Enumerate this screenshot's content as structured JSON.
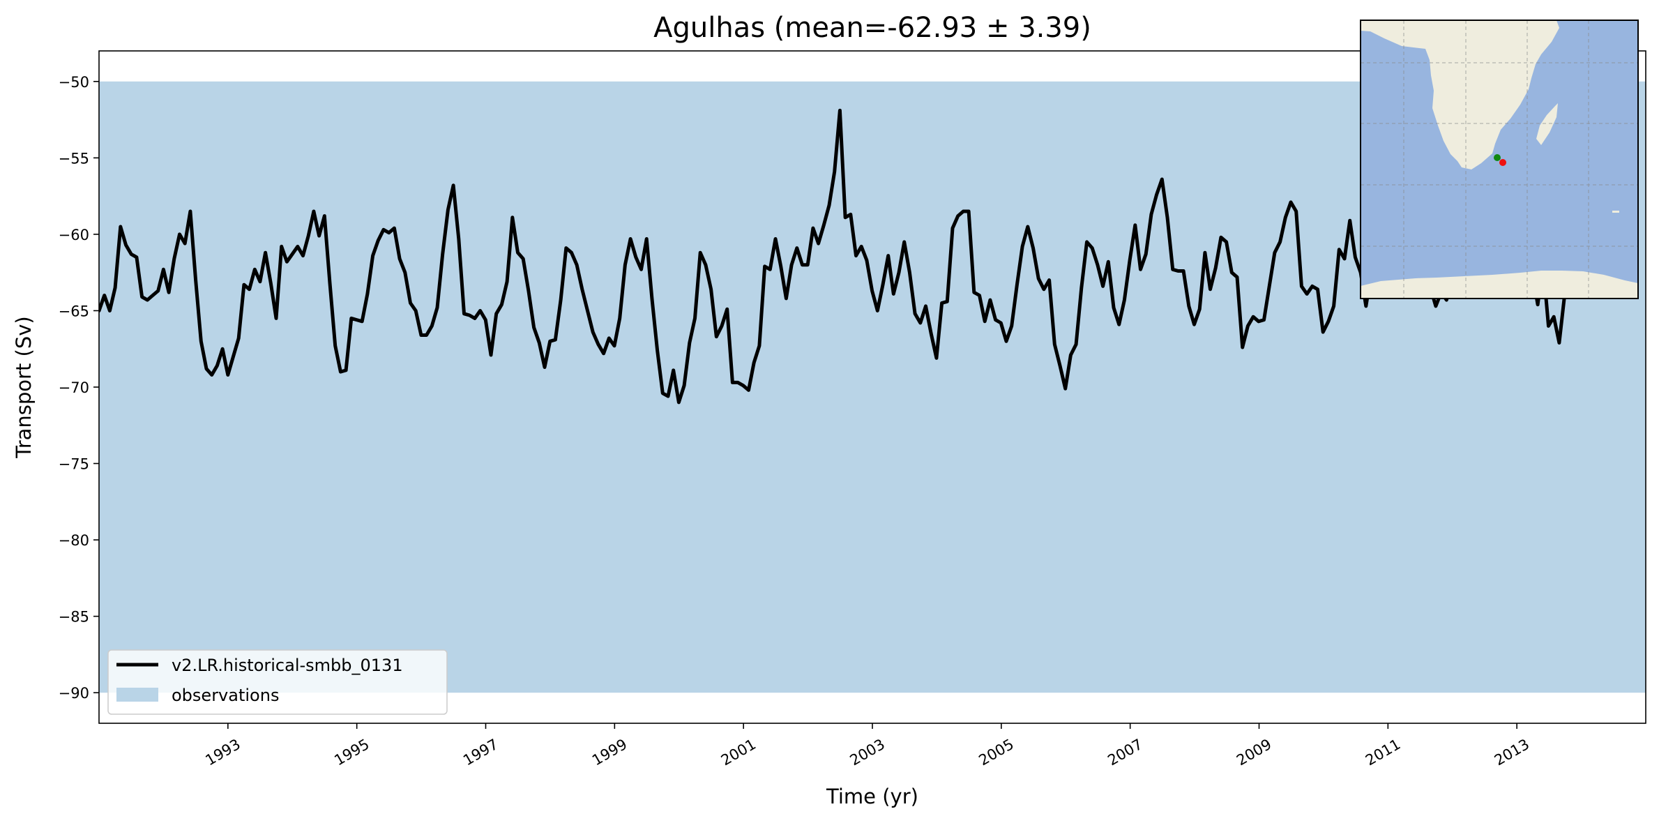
{
  "chart_data": {
    "type": "line",
    "title": "Agulhas (mean=-62.93 ± 3.39)",
    "xlabel": "Time (yr)",
    "ylabel": "Transport (Sv)",
    "xlim": [
      1991.0,
      2015.0
    ],
    "ylim": [
      -92,
      -48
    ],
    "x_ticks": [
      1993,
      1995,
      1997,
      1999,
      2001,
      2003,
      2005,
      2007,
      2009,
      2011,
      2013
    ],
    "y_ticks": [
      -50,
      -55,
      -60,
      -65,
      -70,
      -75,
      -80,
      -85,
      -90
    ],
    "y_tick_labels": [
      "−50",
      "−55",
      "−60",
      "−65",
      "−70",
      "−75",
      "−80",
      "−85",
      "−90"
    ],
    "grid": false,
    "legend_position": "lower-left",
    "observations_band": {
      "name": "observations",
      "y_min": -90,
      "y_max": -50,
      "color": "#b9d4e7"
    },
    "series": [
      {
        "name": "v2.LR.historical-smbb_0131",
        "color": "#000000",
        "x_start": 1991.0,
        "x_step": 0.0833,
        "values": [
          -65.0,
          -64.0,
          -65.0,
          -63.5,
          -59.5,
          -60.7,
          -61.3,
          -61.5,
          -64.1,
          -64.3,
          -64.0,
          -63.7,
          -62.3,
          -63.8,
          -61.6,
          -60.0,
          -60.6,
          -58.5,
          -63.0,
          -67.0,
          -68.8,
          -69.2,
          -68.6,
          -67.5,
          -69.2,
          -68.0,
          -66.8,
          -63.3,
          -63.6,
          -62.3,
          -63.1,
          -61.2,
          -63.2,
          -65.5,
          -60.8,
          -61.8,
          -61.3,
          -60.8,
          -61.4,
          -60.1,
          -58.5,
          -60.1,
          -58.8,
          -63.2,
          -67.3,
          -69.0,
          -68.9,
          -65.5,
          -65.6,
          -65.7,
          -63.9,
          -61.4,
          -60.4,
          -59.7,
          -59.9,
          -59.6,
          -61.6,
          -62.5,
          -64.5,
          -65.0,
          -66.6,
          -66.6,
          -66.0,
          -64.8,
          -61.3,
          -58.4,
          -56.8,
          -60.3,
          -65.2,
          -65.3,
          -65.5,
          -65.0,
          -65.6,
          -67.9,
          -65.2,
          -64.6,
          -63.1,
          -58.9,
          -61.2,
          -61.6,
          -63.7,
          -66.1,
          -67.1,
          -68.7,
          -67.0,
          -66.9,
          -64.3,
          -60.9,
          -61.2,
          -62.0,
          -63.6,
          -65.0,
          -66.4,
          -67.2,
          -67.8,
          -66.8,
          -67.3,
          -65.5,
          -62.0,
          -60.3,
          -61.5,
          -62.3,
          -60.3,
          -64.2,
          -67.6,
          -70.4,
          -70.6,
          -68.9,
          -71.0,
          -69.9,
          -67.1,
          -65.5,
          -61.2,
          -62.0,
          -63.6,
          -66.7,
          -66.0,
          -64.9,
          -69.7,
          -69.7,
          -69.9,
          -70.2,
          -68.4,
          -67.3,
          -62.1,
          -62.3,
          -60.3,
          -62.1,
          -64.2,
          -62.0,
          -60.9,
          -62.0,
          -62.0,
          -59.6,
          -60.6,
          -59.4,
          -58.1,
          -55.9,
          -51.9,
          -58.9,
          -58.7,
          -61.4,
          -60.8,
          -61.7,
          -63.7,
          -65.0,
          -63.3,
          -61.4,
          -63.9,
          -62.5,
          -60.5,
          -62.5,
          -65.2,
          -65.8,
          -64.7,
          -66.5,
          -68.1,
          -64.5,
          -64.4,
          -59.6,
          -58.8,
          -58.5,
          -58.5,
          -63.8,
          -64.0,
          -65.7,
          -64.3,
          -65.6,
          -65.8,
          -67.0,
          -66.0,
          -63.3,
          -60.8,
          -59.5,
          -60.9,
          -62.9,
          -63.6,
          -63.0,
          -67.2,
          -68.6,
          -70.1,
          -67.9,
          -67.2,
          -63.5,
          -60.5,
          -60.9,
          -62.0,
          -63.4,
          -61.8,
          -64.8,
          -65.9,
          -64.3,
          -61.7,
          -59.4,
          -62.3,
          -61.3,
          -58.7,
          -57.4,
          -56.4,
          -58.9,
          -62.3,
          -62.4,
          -62.4,
          -64.7,
          -65.9,
          -64.9,
          -61.2,
          -63.6,
          -62.2,
          -60.2,
          -60.5,
          -62.5,
          -62.8,
          -67.4,
          -66.0,
          -65.4,
          -65.7,
          -65.6,
          -63.4,
          -61.2,
          -60.5,
          -58.9,
          -57.9,
          -58.5,
          -63.4,
          -63.9,
          -63.4,
          -63.6,
          -66.4,
          -65.7,
          -64.7,
          -61.0,
          -61.6,
          -59.1,
          -61.5,
          -62.5,
          -64.7,
          -62.5,
          -63.0,
          -62.5,
          -63.0,
          -63.5,
          -62.5,
          -63.0,
          -62.0,
          -63.5,
          -63.0,
          -62.5,
          -63.5,
          -64.7,
          -63.8,
          -64.3,
          -63.0,
          -62.5,
          -63.0,
          -62.0,
          -63.0,
          -62.5,
          -63.0,
          -62.0,
          -62.5,
          -63.0,
          -62.0,
          -62.5,
          -63.0,
          -62.5,
          -63.0,
          -62.5,
          -64.6,
          -62.0,
          -66.0,
          -65.4,
          -67.1,
          -64.0,
          -61.0,
          -60.5,
          -60.0,
          -59.8,
          -59.7,
          -59.5,
          -59.4,
          -59.0
        ]
      }
    ]
  },
  "inset_map": {
    "kind": "regional map of southern Africa",
    "land_color": "#efedde",
    "ocean_color": "#98b5df",
    "marker_colors": [
      "#118811",
      "#ee1111"
    ]
  }
}
